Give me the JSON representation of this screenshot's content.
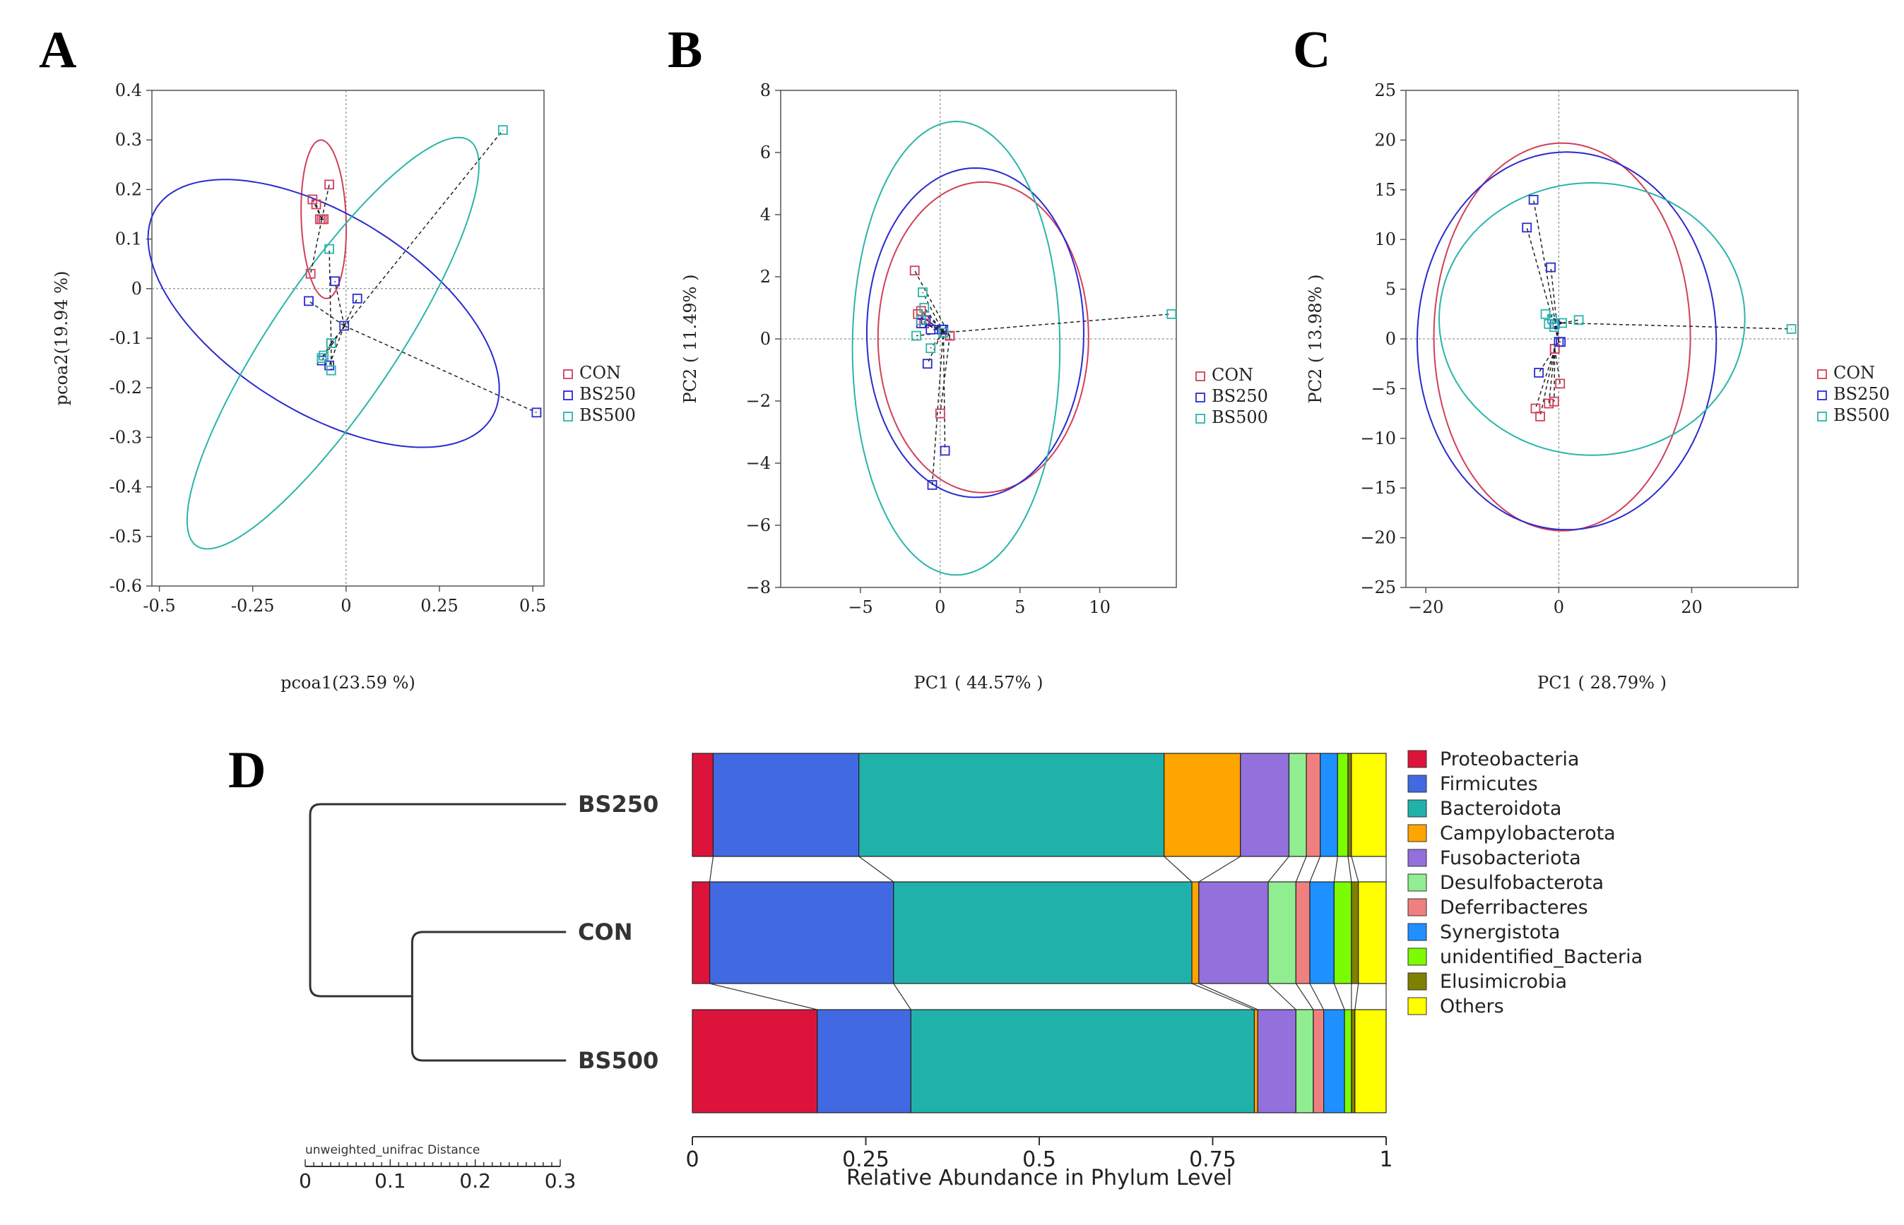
{
  "figure_labels": [
    "A",
    "B",
    "C",
    "D"
  ],
  "colors": {
    "CON": "#d0405a",
    "BS250": "#2a2ad0",
    "BS500": "#2ab5aa"
  },
  "chart_data": [
    {
      "id": "A",
      "type": "scatter",
      "title": "",
      "xlabel": "pcoa1(23.59 %)",
      "ylabel": "pcoa2(19.94 %)",
      "xlim": [
        -0.52,
        0.53
      ],
      "ylim": [
        -0.6,
        0.4
      ],
      "xticks": [
        -0.5,
        -0.25,
        0,
        0.25,
        0.5
      ],
      "xtick_labels": [
        "-0.5",
        "-0.25",
        "0",
        "0.25",
        "0.5"
      ],
      "yticks": [
        -0.6,
        -0.5,
        -0.4,
        -0.3,
        -0.2,
        -0.1,
        0,
        0.1,
        0.2,
        0.3,
        0.4
      ],
      "ytick_labels": [
        "-0.6",
        "-0.5",
        "-0.4",
        "-0.3",
        "-0.2",
        "-0.1",
        "0",
        "0.1",
        "0.2",
        "0.3",
        "0.4"
      ],
      "legend": [
        "CON",
        "BS250",
        "BS500"
      ],
      "legend_position": "right",
      "series": [
        {
          "name": "CON",
          "centroid": [
            -0.065,
            0.14
          ],
          "points": [
            [
              -0.09,
              0.18
            ],
            [
              -0.045,
              0.21
            ],
            [
              -0.07,
              0.14
            ],
            [
              -0.06,
              0.14
            ],
            [
              -0.095,
              0.03
            ],
            [
              -0.08,
              0.17
            ]
          ],
          "ellipse": {
            "cx": -0.06,
            "cy": 0.14,
            "rx": 0.16,
            "ry": 0.06,
            "angle_deg": 93
          }
        },
        {
          "name": "BS250",
          "centroid": [
            -0.005,
            -0.075
          ],
          "points": [
            [
              -0.1,
              -0.025
            ],
            [
              -0.03,
              0.015
            ],
            [
              0.03,
              -0.02
            ],
            [
              -0.065,
              -0.145
            ],
            [
              -0.045,
              -0.155
            ],
            [
              0.51,
              -0.25
            ]
          ],
          "ellipse": {
            "cx": -0.06,
            "cy": -0.05,
            "rx": 0.5,
            "ry": 0.21,
            "angle_deg": -22
          }
        },
        {
          "name": "BS500",
          "centroid": [
            -0.04,
            -0.11
          ],
          "points": [
            [
              0.42,
              0.32
            ],
            [
              -0.045,
              0.08
            ],
            [
              -0.06,
              -0.135
            ],
            [
              -0.04,
              -0.165
            ],
            [
              -0.04,
              -0.11
            ],
            [
              -0.065,
              -0.14
            ]
          ],
          "ellipse": {
            "cx": -0.035,
            "cy": -0.11,
            "rx": 0.55,
            "ry": 0.15,
            "angle_deg": 47
          }
        }
      ]
    },
    {
      "id": "B",
      "type": "scatter",
      "title": "",
      "xlabel": "PC1 ( 44.57% )",
      "ylabel": "PC2 ( 11.49% )",
      "xlim": [
        -10,
        14.8
      ],
      "ylim": [
        -8,
        8
      ],
      "xticks": [
        -5,
        0,
        5,
        10
      ],
      "xtick_labels": [
        "−5",
        "0",
        "5",
        "10"
      ],
      "yticks": [
        -8,
        -6,
        -4,
        -2,
        0,
        2,
        4,
        6,
        8
      ],
      "ytick_labels": [
        "−8",
        "−6",
        "−4",
        "−2",
        "0",
        "2",
        "4",
        "6",
        "8"
      ],
      "legend": [
        "CON",
        "BS250",
        "BS500"
      ],
      "legend_position": "right",
      "series": [
        {
          "name": "CON",
          "centroid": [
            0.6,
            0.1
          ],
          "points": [
            [
              -1.6,
              2.2
            ],
            [
              -1.2,
              0.9
            ],
            [
              -1.4,
              0.8
            ],
            [
              -1.0,
              0.5
            ],
            [
              0.0,
              -2.4
            ],
            [
              0.6,
              0.1
            ]
          ],
          "ellipse": {
            "cx": 2.7,
            "cy": 0.05,
            "rx": 5.0,
            "ry": 6.6,
            "angle_deg": 90
          }
        },
        {
          "name": "BS250",
          "centroid": [
            0.2,
            0.3
          ],
          "points": [
            [
              -1.2,
              0.5
            ],
            [
              -0.9,
              0.6
            ],
            [
              -0.6,
              0.3
            ],
            [
              -0.5,
              -4.7
            ],
            [
              0.3,
              -3.6
            ],
            [
              -0.8,
              -0.8
            ],
            [
              0.1,
              0.3
            ]
          ],
          "ellipse": {
            "cx": 2.2,
            "cy": 0.2,
            "rx": 5.3,
            "ry": 6.8,
            "angle_deg": 90
          }
        },
        {
          "name": "BS500",
          "centroid": [
            0.2,
            0.2
          ],
          "points": [
            [
              -1.1,
              1.5
            ],
            [
              -1.5,
              0.1
            ],
            [
              -1.0,
              1.0
            ],
            [
              -0.6,
              -0.3
            ],
            [
              14.5,
              0.8
            ],
            [
              -1.2,
              0.6
            ]
          ],
          "ellipse": {
            "cx": 1.0,
            "cy": -0.3,
            "rx": 7.3,
            "ry": 6.5,
            "angle_deg": 90
          }
        }
      ]
    },
    {
      "id": "C",
      "type": "scatter",
      "title": "",
      "xlabel": "PC1 ( 28.79% )",
      "ylabel": "PC2 ( 13.98% )",
      "xlim": [
        -23,
        36
      ],
      "ylim": [
        -25,
        25
      ],
      "xticks": [
        -20,
        0,
        20
      ],
      "xtick_labels": [
        "−20",
        "0",
        "20"
      ],
      "yticks": [
        -25,
        -20,
        -15,
        -10,
        -5,
        0,
        5,
        10,
        15,
        20,
        25
      ],
      "ytick_labels": [
        "−25",
        "−20",
        "−15",
        "−10",
        "−5",
        "0",
        "5",
        "10",
        "15",
        "20",
        "25"
      ],
      "legend": [
        "CON",
        "BS250",
        "BS500"
      ],
      "legend_position": "right",
      "series": [
        {
          "name": "CON",
          "centroid": [
            -0.6,
            -1.0
          ],
          "points": [
            [
              -3.5,
              -7.0
            ],
            [
              -2.8,
              -7.8
            ],
            [
              -1.5,
              -6.5
            ],
            [
              -0.7,
              -6.3
            ],
            [
              0.2,
              -4.5
            ],
            [
              -0.6,
              -1.0
            ]
          ],
          "ellipse": {
            "cx": 0.5,
            "cy": 0.2,
            "rx": 19.5,
            "ry": 19.3,
            "angle_deg": 90
          }
        },
        {
          "name": "BS250",
          "centroid": [
            0.0,
            -0.3
          ],
          "points": [
            [
              -3.8,
              14.0
            ],
            [
              -4.8,
              11.2
            ],
            [
              -1.2,
              7.2
            ],
            [
              -3.0,
              -3.4
            ],
            [
              -0.6,
              1.5
            ],
            [
              0.3,
              -0.3
            ]
          ],
          "ellipse": {
            "cx": 1.2,
            "cy": -0.2,
            "rx": 19.0,
            "ry": 22.5,
            "angle_deg": 90
          }
        },
        {
          "name": "BS500",
          "centroid": [
            0.5,
            1.6
          ],
          "points": [
            [
              -2.0,
              2.5
            ],
            [
              -1.5,
              1.5
            ],
            [
              -0.7,
              1.2
            ],
            [
              3.0,
              1.9
            ],
            [
              35.0,
              1.0
            ],
            [
              -1.0,
              2.0
            ]
          ],
          "ellipse": {
            "cx": 5.0,
            "cy": 2.0,
            "rx": 13.7,
            "ry": 23.0,
            "angle_deg": 90
          }
        }
      ]
    },
    {
      "id": "D",
      "type": "bar",
      "orientation": "horizontal",
      "stacked": true,
      "xlabel": "Relative Abundance in Phylum Level",
      "xlim": [
        0,
        1
      ],
      "xticks": [
        0,
        0.25,
        0.5,
        0.75,
        1
      ],
      "xtick_labels": [
        "0",
        "0.25",
        "0.5",
        "0.75",
        "1"
      ],
      "categories": [
        "BS250",
        "CON",
        "BS500"
      ],
      "series": [
        {
          "name": "Proteobacteria",
          "color": "#dc143c",
          "values": [
            0.03,
            0.025,
            0.18
          ]
        },
        {
          "name": "Firmicutes",
          "color": "#4169e1",
          "values": [
            0.21,
            0.265,
            0.135
          ]
        },
        {
          "name": "Bacteroidota",
          "color": "#20b2aa",
          "values": [
            0.44,
            0.43,
            0.495
          ]
        },
        {
          "name": "Campylobacterota",
          "color": "#ffa500",
          "values": [
            0.11,
            0.01,
            0.005
          ]
        },
        {
          "name": "Fusobacteriota",
          "color": "#9370db",
          "values": [
            0.07,
            0.1,
            0.055
          ]
        },
        {
          "name": "Desulfobacterota",
          "color": "#90ee90",
          "values": [
            0.025,
            0.04,
            0.025
          ]
        },
        {
          "name": "Deferribacteres",
          "color": "#f08080",
          "values": [
            0.02,
            0.02,
            0.015
          ]
        },
        {
          "name": "Synergistota",
          "color": "#1e90ff",
          "values": [
            0.025,
            0.035,
            0.03
          ]
        },
        {
          "name": "unidentified_Bacteria",
          "color": "#7cfc00",
          "values": [
            0.015,
            0.025,
            0.01
          ]
        },
        {
          "name": "Elusimicrobia",
          "color": "#808000",
          "values": [
            0.005,
            0.01,
            0.005
          ]
        },
        {
          "name": "Others",
          "color": "#ffff00",
          "values": [
            0.05,
            0.04,
            0.045
          ]
        }
      ],
      "dendrogram": {
        "title": "unweighted_unifrac Distance",
        "leaves": [
          "BS250",
          "CON",
          "BS500"
        ],
        "merges": [
          {
            "children": [
              "CON",
              "BS500"
            ],
            "height": 0.18
          },
          {
            "children": [
              "BS250",
              "CON+BS500"
            ],
            "height": 0.3
          }
        ],
        "scale_ticks": [
          0,
          0.1,
          0.2,
          0.3
        ],
        "scale_labels": [
          "0",
          "0.1",
          "0.2",
          "0.3"
        ]
      }
    }
  ]
}
